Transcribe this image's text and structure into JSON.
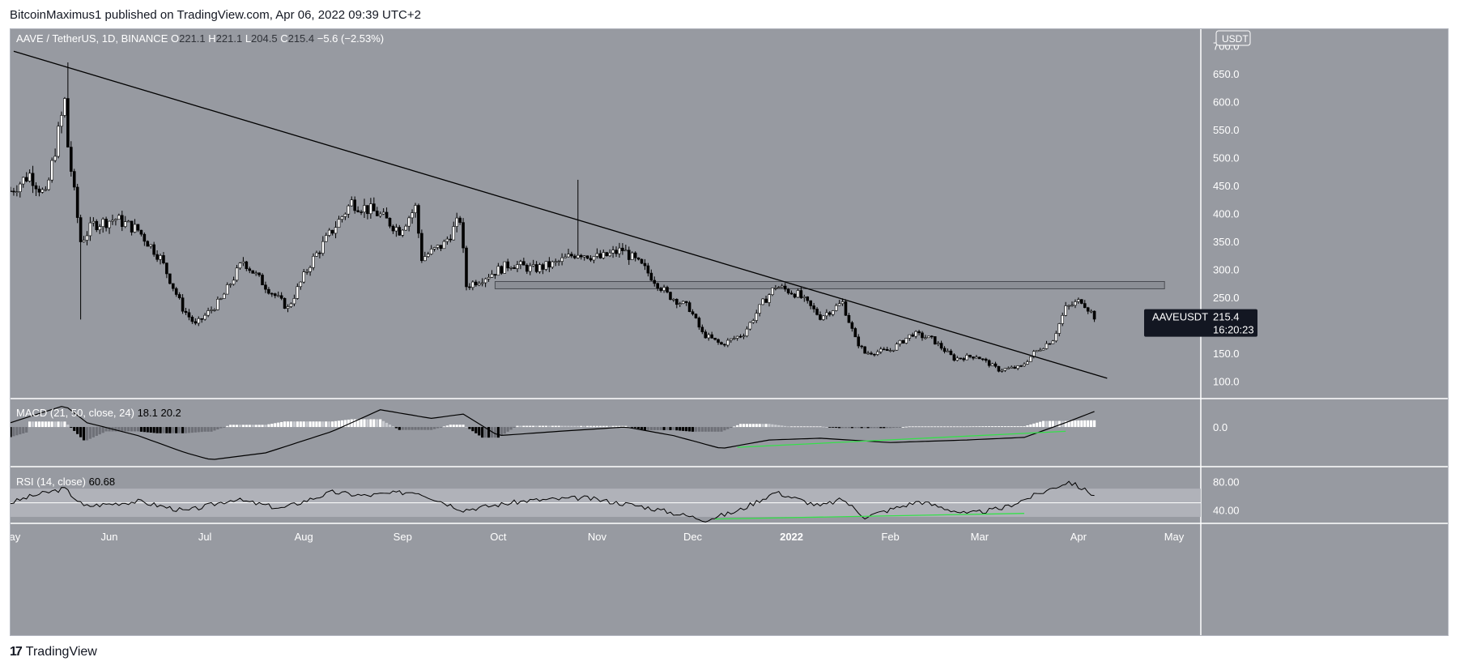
{
  "header": {
    "published": "BitcoinMaximus1 published on TradingView.com, Apr 06, 2022 09:39 UTC+2"
  },
  "footer": {
    "brand": "TradingView",
    "logo_glyph": "17"
  },
  "chart_data": {
    "type": "candlestick",
    "symbol_line": {
      "pair": "AAVE / TetherUS, 1D, BINANCE",
      "o_label": "O",
      "o_value": "221.1",
      "h_label": "H",
      "h_value": "221.1",
      "l_label": "L",
      "l_value": "204.5",
      "c_label": "C",
      "c_value": "215.4",
      "change": "−5.6 (−2.53%)"
    },
    "currency_badge": "USDT",
    "price_axis": {
      "ylim": [
        70,
        715
      ],
      "ticks": [
        "100.0",
        "150.0",
        "200.0",
        "250.0",
        "300.0",
        "350.0",
        "400.0",
        "450.0",
        "500.0",
        "550.0",
        "600.0",
        "650.0",
        "700.0"
      ]
    },
    "price_label": {
      "symbol": "AAVEUSDT",
      "price": "215.4",
      "countdown": "16:20:23"
    },
    "x_axis": {
      "labels": [
        "May",
        "Jun",
        "Jul",
        "Aug",
        "Sep",
        "Oct",
        "Nov",
        "Dec",
        "2022",
        "Feb",
        "Mar",
        "Apr",
        "May"
      ],
      "bold": [
        "2022"
      ]
    },
    "series_close": [
      {
        "date": "2021-05-01",
        "close": 440
      },
      {
        "date": "2021-05-07",
        "close": 470
      },
      {
        "date": "2021-05-12",
        "close": 430
      },
      {
        "date": "2021-05-18",
        "close": 600
      },
      {
        "date": "2021-05-19",
        "close": 520
      },
      {
        "date": "2021-05-23",
        "close": 350
      },
      {
        "date": "2021-05-27",
        "close": 380
      },
      {
        "date": "2021-06-03",
        "close": 390
      },
      {
        "date": "2021-06-10",
        "close": 370
      },
      {
        "date": "2021-06-17",
        "close": 320
      },
      {
        "date": "2021-06-24",
        "close": 230
      },
      {
        "date": "2021-06-28",
        "close": 200
      },
      {
        "date": "2021-07-06",
        "close": 245
      },
      {
        "date": "2021-07-13",
        "close": 315
      },
      {
        "date": "2021-07-20",
        "close": 270
      },
      {
        "date": "2021-07-27",
        "close": 230
      },
      {
        "date": "2021-08-03",
        "close": 310
      },
      {
        "date": "2021-08-10",
        "close": 370
      },
      {
        "date": "2021-08-16",
        "close": 420
      },
      {
        "date": "2021-08-24",
        "close": 400
      },
      {
        "date": "2021-08-31",
        "close": 370
      },
      {
        "date": "2021-09-05",
        "close": 410
      },
      {
        "date": "2021-09-07",
        "close": 320
      },
      {
        "date": "2021-09-14",
        "close": 345
      },
      {
        "date": "2021-09-19",
        "close": 390
      },
      {
        "date": "2021-09-21",
        "close": 270
      },
      {
        "date": "2021-09-28",
        "close": 290
      },
      {
        "date": "2021-10-05",
        "close": 310
      },
      {
        "date": "2021-10-12",
        "close": 300
      },
      {
        "date": "2021-10-19",
        "close": 310
      },
      {
        "date": "2021-10-26",
        "close": 330
      },
      {
        "date": "2021-11-02",
        "close": 320
      },
      {
        "date": "2021-11-09",
        "close": 335
      },
      {
        "date": "2021-11-16",
        "close": 300
      },
      {
        "date": "2021-11-23",
        "close": 255
      },
      {
        "date": "2021-11-30",
        "close": 230
      },
      {
        "date": "2021-12-04",
        "close": 185
      },
      {
        "date": "2021-12-10",
        "close": 165
      },
      {
        "date": "2021-12-17",
        "close": 185
      },
      {
        "date": "2021-12-23",
        "close": 240
      },
      {
        "date": "2021-12-27",
        "close": 270
      },
      {
        "date": "2022-01-03",
        "close": 255
      },
      {
        "date": "2022-01-10",
        "close": 215
      },
      {
        "date": "2022-01-17",
        "close": 240
      },
      {
        "date": "2022-01-21",
        "close": 175
      },
      {
        "date": "2022-01-24",
        "close": 150
      },
      {
        "date": "2022-02-01",
        "close": 155
      },
      {
        "date": "2022-02-08",
        "close": 185
      },
      {
        "date": "2022-02-14",
        "close": 175
      },
      {
        "date": "2022-02-21",
        "close": 140
      },
      {
        "date": "2022-02-28",
        "close": 145
      },
      {
        "date": "2022-03-07",
        "close": 120
      },
      {
        "date": "2022-03-14",
        "close": 125
      },
      {
        "date": "2022-03-18",
        "close": 150
      },
      {
        "date": "2022-03-24",
        "close": 175
      },
      {
        "date": "2022-03-28",
        "close": 230
      },
      {
        "date": "2022-04-02",
        "close": 245
      },
      {
        "date": "2022-04-06",
        "close": 215.4
      }
    ],
    "annotations": {
      "descending_trendline": {
        "from": {
          "date": "2021-05-02",
          "price": 690
        },
        "to": {
          "date": "2022-04-10",
          "price": 105
        }
      },
      "resistance_zone": {
        "from_date": "2021-09-30",
        "to_date": "2022-04-28",
        "low": 265,
        "high": 278
      },
      "macd_divergence": {
        "from_date": "2021-12-15",
        "to_date": "2022-03-28"
      },
      "rsi_divergence": {
        "from_date": "2021-12-08",
        "to_date": "2022-03-15"
      }
    },
    "macd": {
      "label": "MACD (21, 50, close, 24)",
      "value1": "18.1",
      "value2": "20.2",
      "ylim": [
        -45,
        32
      ],
      "tick": "0.0",
      "line": [
        {
          "date": "2021-05-01",
          "v": 5
        },
        {
          "date": "2021-05-18",
          "v": 25
        },
        {
          "date": "2021-05-25",
          "v": 5
        },
        {
          "date": "2021-06-10",
          "v": -10
        },
        {
          "date": "2021-06-25",
          "v": -30
        },
        {
          "date": "2021-07-03",
          "v": -38
        },
        {
          "date": "2021-07-20",
          "v": -30
        },
        {
          "date": "2021-08-10",
          "v": -5
        },
        {
          "date": "2021-08-25",
          "v": 20
        },
        {
          "date": "2021-09-10",
          "v": 10
        },
        {
          "date": "2021-09-20",
          "v": 15
        },
        {
          "date": "2021-10-01",
          "v": -10
        },
        {
          "date": "2021-10-20",
          "v": -5
        },
        {
          "date": "2021-11-10",
          "v": 0
        },
        {
          "date": "2021-11-25",
          "v": -10
        },
        {
          "date": "2021-12-10",
          "v": -25
        },
        {
          "date": "2021-12-25",
          "v": -15
        },
        {
          "date": "2022-01-10",
          "v": -13
        },
        {
          "date": "2022-02-01",
          "v": -18
        },
        {
          "date": "2022-02-25",
          "v": -15
        },
        {
          "date": "2022-03-15",
          "v": -12
        },
        {
          "date": "2022-03-28",
          "v": 5
        },
        {
          "date": "2022-04-06",
          "v": 18
        }
      ]
    },
    "rsi": {
      "label": "RSI (14, close)",
      "value": "60.68",
      "ylim": [
        22,
        100
      ],
      "ticks": [
        "80.00",
        "40.00"
      ],
      "band": [
        30,
        70
      ],
      "line": [
        {
          "date": "2021-05-01",
          "v": 50
        },
        {
          "date": "2021-05-08",
          "v": 60
        },
        {
          "date": "2021-05-18",
          "v": 70
        },
        {
          "date": "2021-05-24",
          "v": 45
        },
        {
          "date": "2021-06-10",
          "v": 52
        },
        {
          "date": "2021-06-25",
          "v": 38
        },
        {
          "date": "2021-07-10",
          "v": 55
        },
        {
          "date": "2021-07-25",
          "v": 42
        },
        {
          "date": "2021-08-10",
          "v": 65
        },
        {
          "date": "2021-08-20",
          "v": 60
        },
        {
          "date": "2021-09-05",
          "v": 66
        },
        {
          "date": "2021-09-20",
          "v": 40
        },
        {
          "date": "2021-10-10",
          "v": 53
        },
        {
          "date": "2021-10-28",
          "v": 57
        },
        {
          "date": "2021-11-15",
          "v": 45
        },
        {
          "date": "2021-12-05",
          "v": 26
        },
        {
          "date": "2021-12-15",
          "v": 38
        },
        {
          "date": "2021-12-27",
          "v": 65
        },
        {
          "date": "2022-01-10",
          "v": 45
        },
        {
          "date": "2022-01-17",
          "v": 55
        },
        {
          "date": "2022-01-24",
          "v": 30
        },
        {
          "date": "2022-02-10",
          "v": 52
        },
        {
          "date": "2022-02-25",
          "v": 34
        },
        {
          "date": "2022-03-08",
          "v": 42
        },
        {
          "date": "2022-03-18",
          "v": 60
        },
        {
          "date": "2022-03-29",
          "v": 80
        },
        {
          "date": "2022-04-06",
          "v": 61
        }
      ]
    }
  }
}
